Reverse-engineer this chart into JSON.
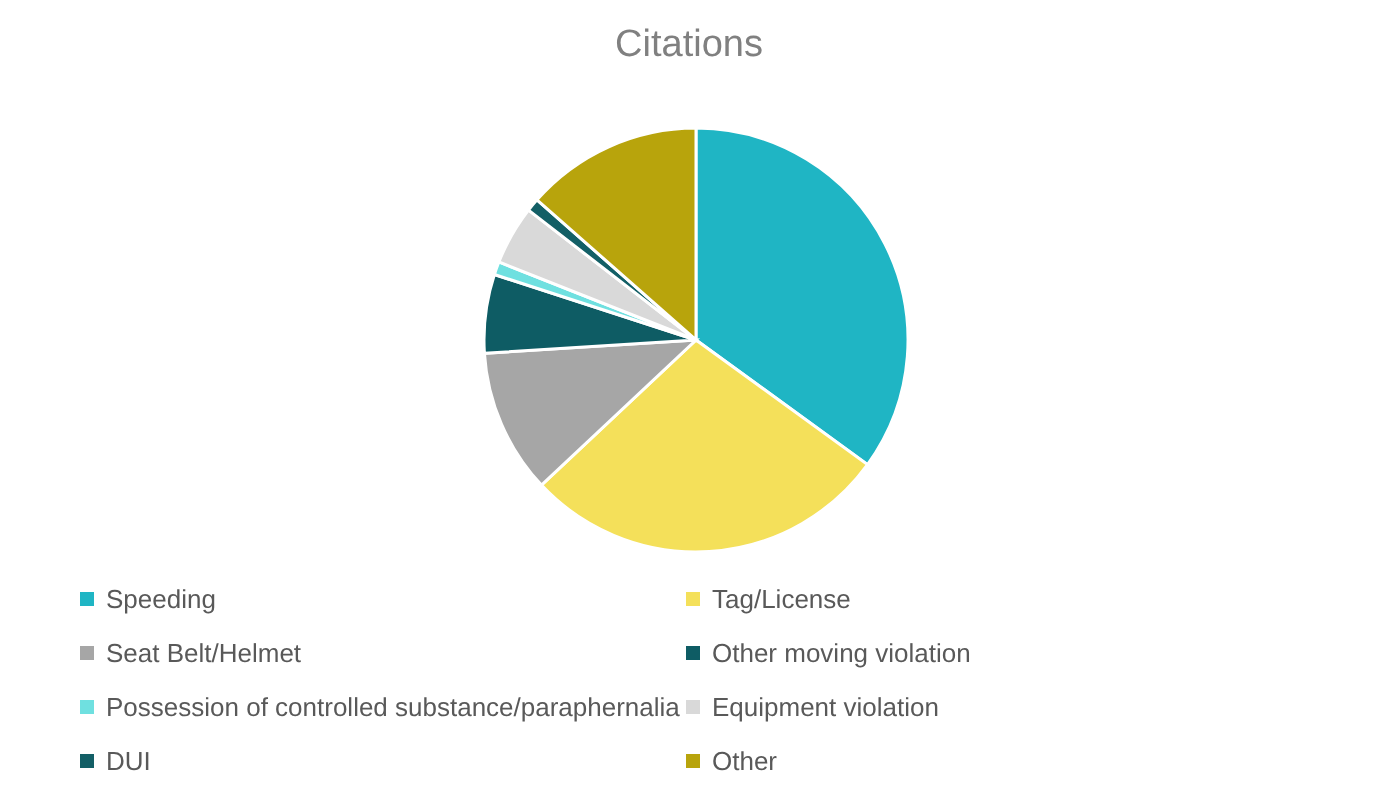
{
  "chart_data": {
    "type": "pie",
    "title": "Citations",
    "categories": [
      "Speeding",
      "Tag/License",
      "Seat Belt/Helmet",
      "Other moving violation",
      "Possession of controlled substance/paraphernalia",
      "Equipment violation",
      "DUI",
      "Other"
    ],
    "values": [
      35,
      28,
      11,
      6,
      1,
      4.5,
      1,
      13.5
    ],
    "colors": [
      "#1fb5c4",
      "#f4e05a",
      "#a6a6a6",
      "#0e5c64",
      "#6fe0e0",
      "#d9d9d9",
      "#135f66",
      "#b8a40c"
    ],
    "legend": "bottom"
  }
}
